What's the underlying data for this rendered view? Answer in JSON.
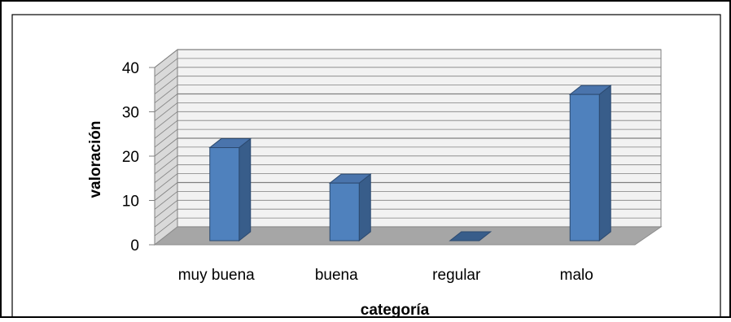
{
  "chart_data": {
    "type": "bar",
    "categories": [
      "muy buena",
      "buena",
      "regular",
      "malo"
    ],
    "values": [
      21,
      13,
      0,
      33
    ],
    "title": "",
    "xlabel": "categoría",
    "ylabel": "valoración",
    "ylim": [
      0,
      40
    ],
    "yticks": [
      0,
      10,
      20,
      30,
      40
    ],
    "grid": true,
    "three_d": true,
    "colors": {
      "bar_front": "#4F81BD",
      "bar_side": "#385D8A",
      "bar_top": "#4A74AC",
      "floor": "#A6A6A6",
      "back_wall": "#F2F2F2",
      "side_wall": "#D9D9D9",
      "grid": "#808080",
      "outer_border": "#000000"
    }
  }
}
